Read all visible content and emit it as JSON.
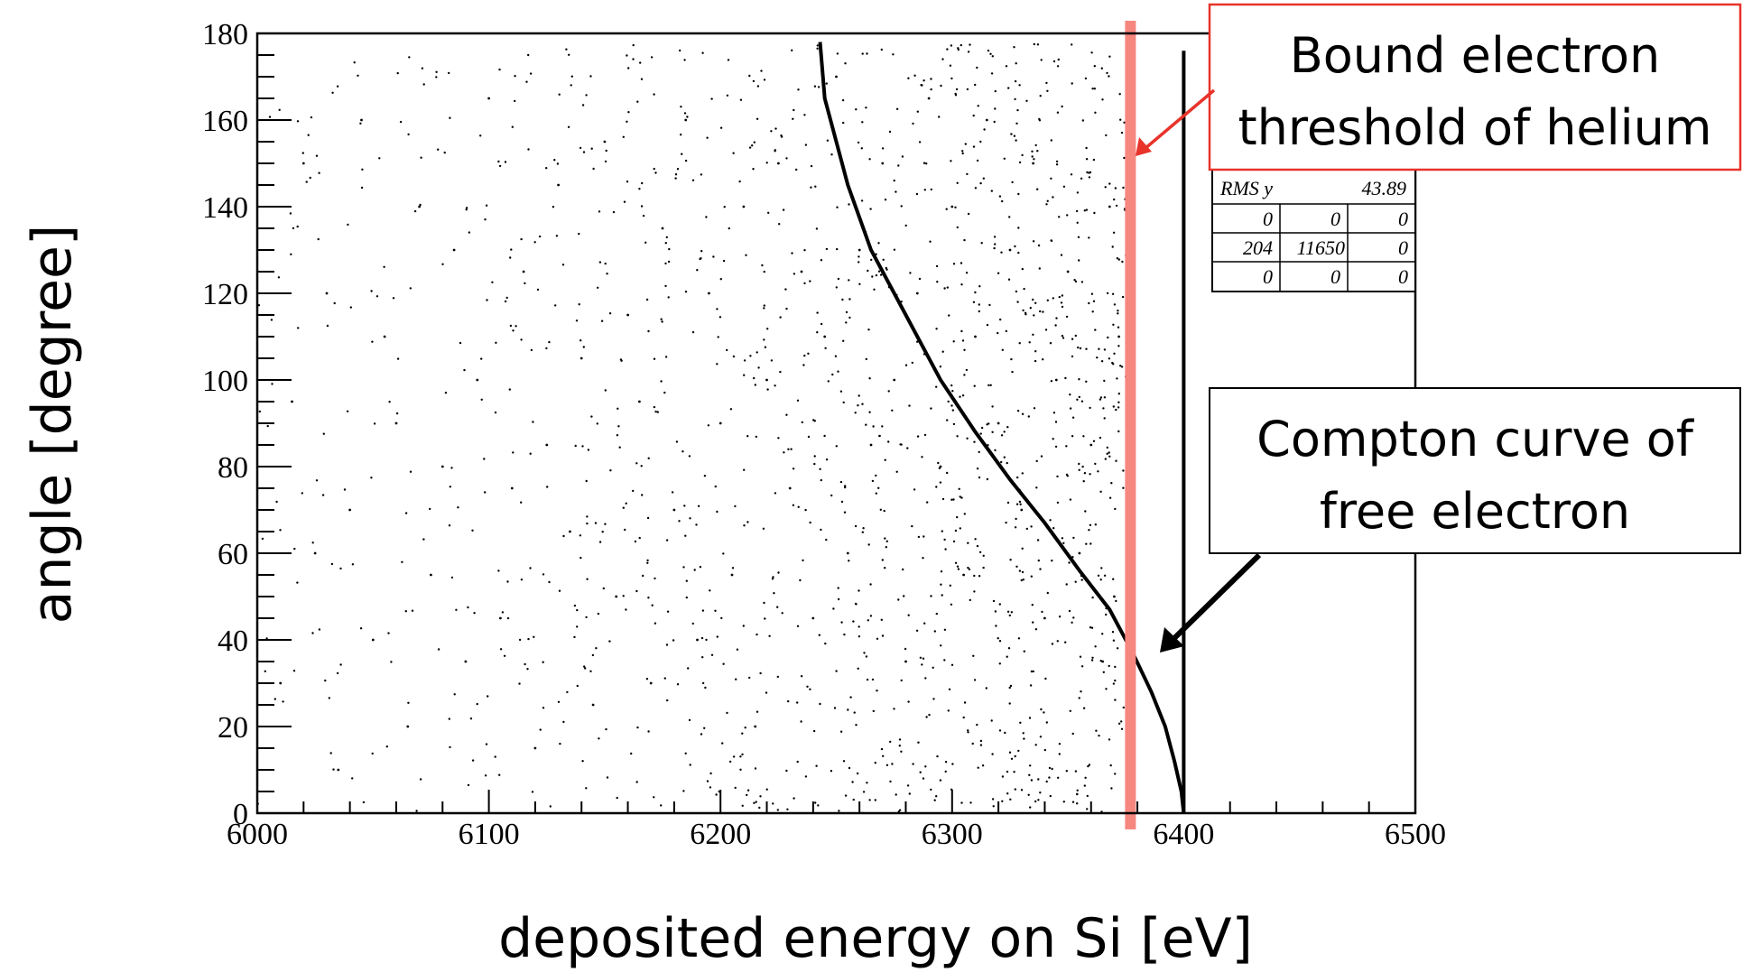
{
  "chart_data": {
    "type": "scatter",
    "xlabel": "deposited energy on Si [eV]",
    "ylabel": "angle [degree]",
    "xlim": [
      6000,
      6500
    ],
    "ylim": [
      0,
      180
    ],
    "xticks": [
      6000,
      6100,
      6200,
      6300,
      6400,
      6500
    ],
    "yticks": [
      0,
      20,
      40,
      60,
      80,
      100,
      120,
      140,
      160,
      180
    ],
    "grid": false,
    "series": [
      {
        "description_free": "scattered background points",
        "points": [
          [
            6010,
            30
          ],
          [
            6015,
            95
          ],
          [
            6020,
            150
          ],
          [
            6025,
            60
          ],
          [
            6030,
            120
          ],
          [
            6035,
            10
          ],
          [
            6040,
            70
          ],
          [
            6045,
            160
          ],
          [
            6050,
            40
          ],
          [
            6055,
            110
          ],
          [
            6060,
            90
          ],
          [
            6065,
            20
          ],
          [
            6070,
            140
          ],
          [
            6075,
            55
          ],
          [
            6080,
            80
          ],
          [
            6085,
            130
          ],
          [
            6090,
            35
          ],
          [
            6095,
            100
          ],
          [
            6100,
            165
          ],
          [
            6105,
            45
          ],
          [
            6110,
            75
          ],
          [
            6115,
            125
          ],
          [
            6120,
            15
          ],
          [
            6125,
            85
          ],
          [
            6130,
            145
          ],
          [
            6135,
            65
          ],
          [
            6140,
            105
          ],
          [
            6145,
            25
          ],
          [
            6150,
            155
          ],
          [
            6155,
            50
          ],
          [
            6160,
            115
          ],
          [
            6165,
            95
          ],
          [
            6170,
            30
          ],
          [
            6175,
            135
          ],
          [
            6180,
            70
          ],
          [
            6185,
            160
          ],
          [
            6190,
            40
          ],
          [
            6195,
            120
          ],
          [
            6200,
            90
          ],
          [
            6205,
            55
          ],
          [
            6210,
            140
          ],
          [
            6215,
            20
          ],
          [
            6220,
            100
          ],
          [
            6225,
            150
          ],
          [
            6230,
            75
          ],
          [
            6235,
            125
          ],
          [
            6240,
            45
          ],
          [
            6245,
            110
          ],
          [
            6250,
            170
          ],
          [
            6255,
            60
          ],
          [
            6260,
            130
          ],
          [
            6265,
            85
          ],
          [
            6270,
            150
          ],
          [
            6275,
            100
          ],
          [
            6280,
            35
          ],
          [
            6285,
            120
          ],
          [
            6290,
            165
          ],
          [
            6295,
            80
          ],
          [
            6300,
            140
          ],
          [
            6305,
            55
          ],
          [
            6310,
            110
          ],
          [
            6315,
            160
          ],
          [
            6320,
            90
          ],
          [
            6325,
            130
          ],
          [
            6330,
            70
          ],
          [
            6335,
            150
          ],
          [
            6340,
            45
          ],
          [
            6345,
            100
          ],
          [
            6350,
            125
          ],
          [
            6355,
            60
          ],
          [
            6360,
            85
          ],
          [
            6365,
            35
          ],
          [
            6370,
            50
          ],
          [
            6372,
            110
          ],
          [
            6368,
            140
          ]
        ]
      }
    ],
    "curves": {
      "compton_free_electron": {
        "x": [
          6243,
          6245,
          6255,
          6265,
          6280,
          6295,
          6310,
          6325,
          6340,
          6355,
          6368,
          6378,
          6386,
          6392,
          6396,
          6399,
          6400
        ],
        "y": [
          178,
          165,
          145,
          130,
          115,
          100,
          88,
          77,
          67,
          56,
          47,
          37,
          28,
          20,
          12,
          5,
          0
        ]
      },
      "vertical_line_6400": {
        "x": [
          6400,
          6400
        ],
        "y": [
          0,
          176
        ]
      }
    },
    "threshold_line_x": 6377,
    "colors": {
      "threshold": "#f5877f",
      "arrow_red": "#e8332a",
      "points": "#000000"
    },
    "stats_box": {
      "rms_label": "RMS y",
      "rms_value": "43.89",
      "table": [
        [
          "0",
          "0",
          "0"
        ],
        [
          "204",
          "11650",
          "0"
        ],
        [
          "0",
          "0",
          "0"
        ]
      ]
    },
    "annotations": [
      {
        "lines": [
          "Bound electron",
          "threshold of helium"
        ],
        "border": "#e8332a"
      },
      {
        "lines": [
          "Compton curve of",
          "free electron"
        ],
        "border": "#000000"
      }
    ]
  }
}
